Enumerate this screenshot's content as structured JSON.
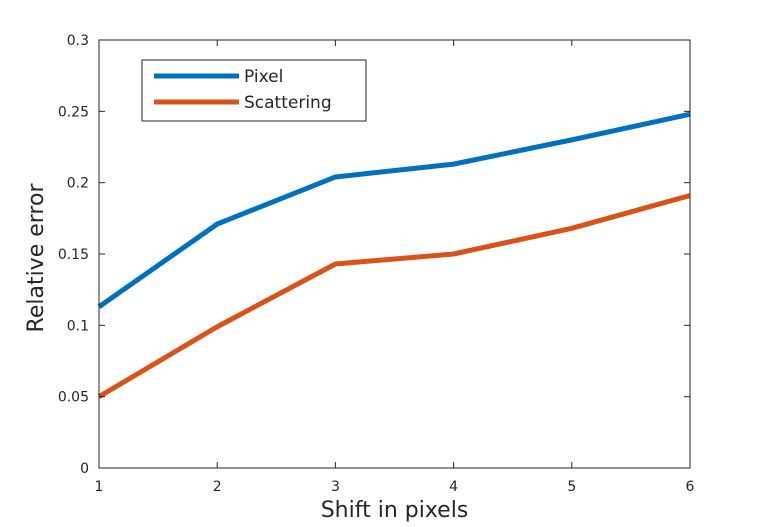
{
  "chart_data": {
    "type": "line",
    "title": "",
    "xlabel": "Shift in pixels",
    "ylabel": "Relative error",
    "x": [
      1,
      2,
      3,
      4,
      5,
      6
    ],
    "xlim": [
      1,
      6
    ],
    "ylim": [
      0,
      0.3
    ],
    "xticks": [
      1,
      2,
      3,
      4,
      5,
      6
    ],
    "xtick_labels": [
      "1",
      "2",
      "3",
      "4",
      "5",
      "6"
    ],
    "yticks": [
      0,
      0.05,
      0.1,
      0.15,
      0.2,
      0.25,
      0.3
    ],
    "ytick_labels": [
      "0",
      "0.05",
      "0.1",
      "0.15",
      "0.2",
      "0.25",
      "0.3"
    ],
    "grid": false,
    "legend_position": "top-left",
    "series": [
      {
        "name": "Pixel",
        "color": "#0072BD",
        "values": [
          0.113,
          0.171,
          0.204,
          0.213,
          0.23,
          0.248
        ]
      },
      {
        "name": "Scattering",
        "color": "#D95319",
        "values": [
          0.05,
          0.099,
          0.143,
          0.15,
          0.168,
          0.191
        ]
      }
    ]
  }
}
